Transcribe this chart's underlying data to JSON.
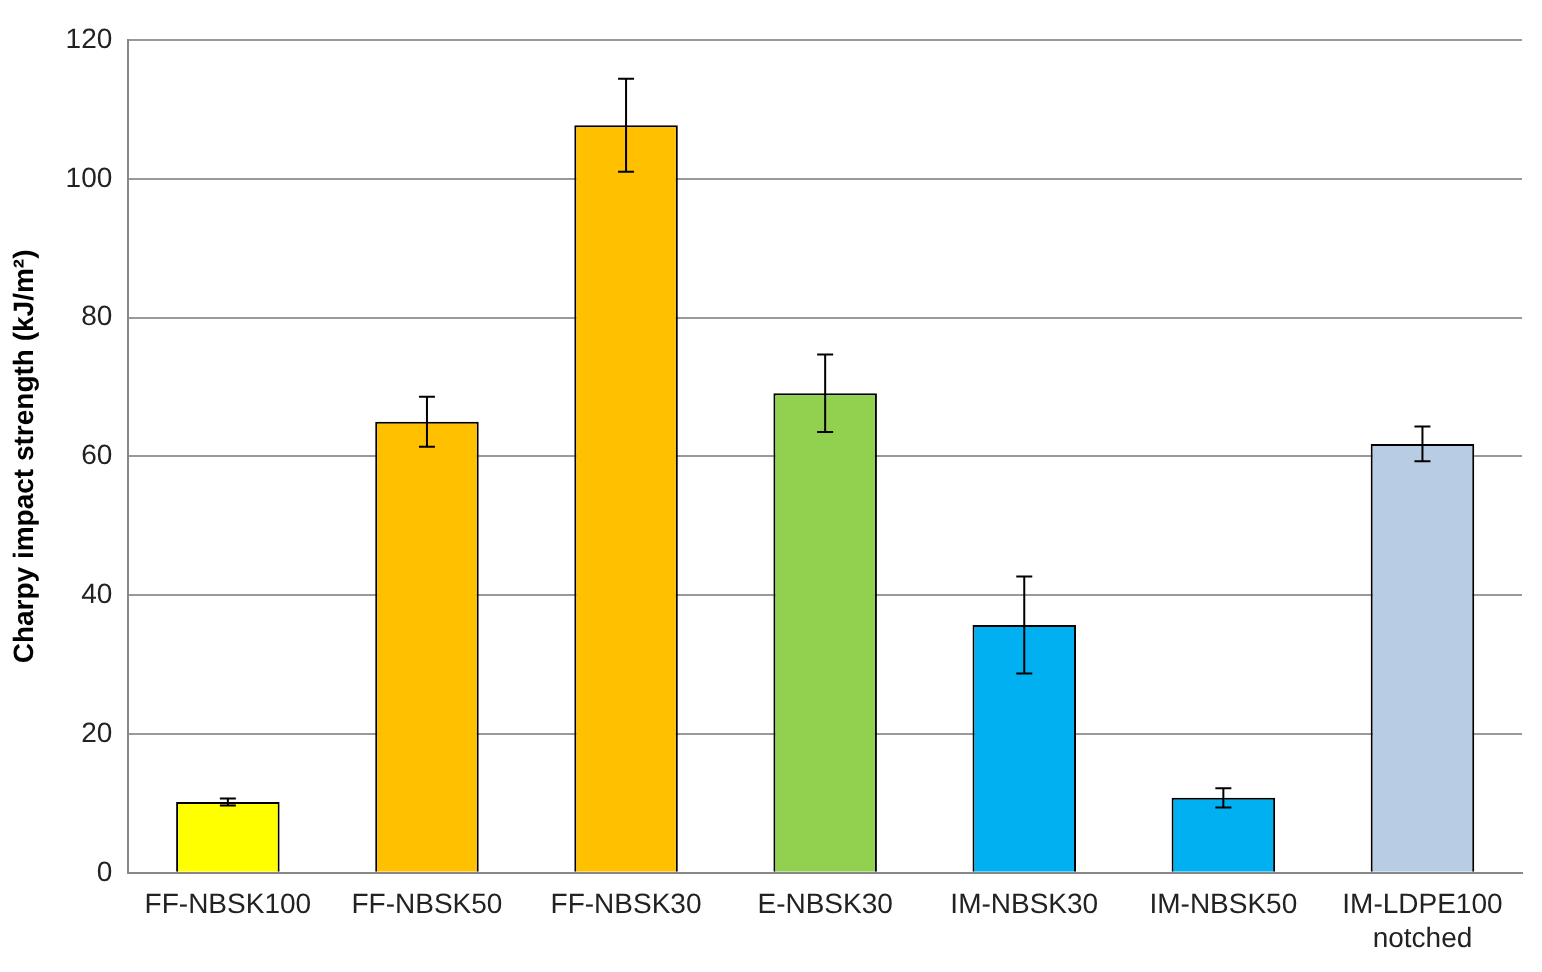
{
  "chart_data": {
    "type": "bar",
    "ylabel": "Charpy impact strength (kJ/m²)",
    "categories": [
      "FF-NBSK100",
      "FF-NBSK50",
      "FF-NBSK30",
      "E-NBSK30",
      "IM-NBSK30",
      "IM-NBSK50",
      "IM-LDPE100\nnotched"
    ],
    "values": [
      10.2,
      65,
      107.7,
      69.1,
      35.7,
      10.8,
      61.8
    ],
    "errors": [
      0.5,
      3.6,
      6.7,
      5.6,
      7,
      1.4,
      2.5
    ],
    "colors": [
      "#ffff00",
      "#ffc000",
      "#ffc000",
      "#92d050",
      "#00b0f0",
      "#00b0f0",
      "#b8cce4"
    ],
    "ylim": [
      0,
      120
    ],
    "yticks": [
      0,
      20,
      40,
      60,
      80,
      100,
      120
    ],
    "grid": "y",
    "legend": false
  }
}
